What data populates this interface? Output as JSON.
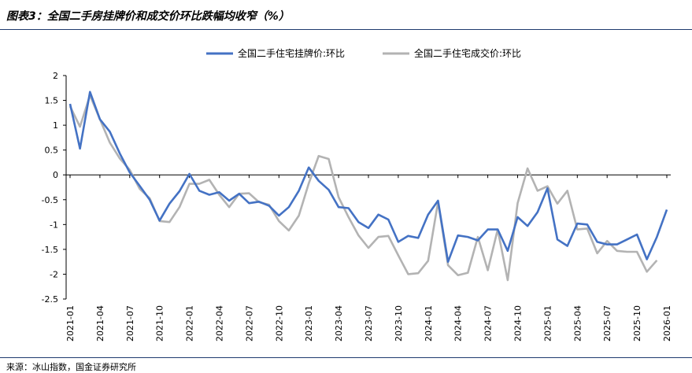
{
  "title": "图表3：全国二手房挂牌价和成交价环比跌幅均收窄（%）",
  "source": "来源：冰山指数，国金证券研究所",
  "colors": {
    "listing": "#4472c4",
    "transaction": "#b3b3b3",
    "axis": "#000000"
  },
  "chart_data": {
    "type": "line",
    "title": "图表3：全国二手房挂牌价和成交价环比跌幅均收窄（%）",
    "xlabel": "",
    "ylabel": "",
    "ylim": [
      -2.5,
      2
    ],
    "yticks": [
      2,
      1.5,
      1,
      0.5,
      0,
      -0.5,
      -1,
      -1.5,
      -2,
      -2.5
    ],
    "ytick_labels": [
      "2",
      "1.5",
      "1",
      "0.5",
      "0",
      "-0.5",
      "-1",
      "-1.5",
      "-2",
      "-2.5"
    ],
    "xlim": [
      "2021-01",
      "2026-01"
    ],
    "xticks": [
      "2021-01",
      "2021-04",
      "2021-07",
      "2021-10",
      "2022-01",
      "2022-04",
      "2022-07",
      "2022-10",
      "2023-01",
      "2023-04",
      "2023-07",
      "2023-10",
      "2024-01",
      "2024-04",
      "2024-07",
      "2024-10",
      "2025-01",
      "2025-04",
      "2025-07",
      "2025-10",
      "2026-01"
    ],
    "grid": false,
    "legend": "top-center",
    "series": [
      {
        "name": "全国二手住宅挂牌价:环比",
        "color": "#4472c4",
        "points": [
          [
            "2021-01",
            1.43
          ],
          [
            "2021-02",
            0.53
          ],
          [
            "2021-03",
            1.67
          ],
          [
            "2021-04",
            1.12
          ],
          [
            "2021-05",
            0.87
          ],
          [
            "2021-06",
            0.43
          ],
          [
            "2021-07",
            0.05
          ],
          [
            "2021-08",
            -0.22
          ],
          [
            "2021-09",
            -0.5
          ],
          [
            "2021-10",
            -0.92
          ],
          [
            "2021-11",
            -0.58
          ],
          [
            "2021-12",
            -0.33
          ],
          [
            "2022-01",
            0.02
          ],
          [
            "2022-02",
            -0.32
          ],
          [
            "2022-03",
            -0.4
          ],
          [
            "2022-04",
            -0.35
          ],
          [
            "2022-05",
            -0.52
          ],
          [
            "2022-06",
            -0.38
          ],
          [
            "2022-07",
            -0.57
          ],
          [
            "2022-08",
            -0.54
          ],
          [
            "2022-09",
            -0.62
          ],
          [
            "2022-10",
            -0.82
          ],
          [
            "2022-11",
            -0.65
          ],
          [
            "2022-12",
            -0.32
          ],
          [
            "2023-01",
            0.15
          ],
          [
            "2023-02",
            -0.12
          ],
          [
            "2023-03",
            -0.3
          ],
          [
            "2023-04",
            -0.65
          ],
          [
            "2023-05",
            -0.67
          ],
          [
            "2023-06",
            -0.95
          ],
          [
            "2023-07",
            -1.07
          ],
          [
            "2023-08",
            -0.8
          ],
          [
            "2023-09",
            -0.9
          ],
          [
            "2023-10",
            -1.35
          ],
          [
            "2023-11",
            -1.23
          ],
          [
            "2023-12",
            -1.27
          ],
          [
            "2024-01",
            -0.8
          ],
          [
            "2024-02",
            -0.52
          ],
          [
            "2024-03",
            -1.75
          ],
          [
            "2024-04",
            -1.22
          ],
          [
            "2024-05",
            -1.25
          ],
          [
            "2024-06",
            -1.32
          ],
          [
            "2024-07",
            -1.1
          ],
          [
            "2024-08",
            -1.1
          ],
          [
            "2024-09",
            -1.53
          ],
          [
            "2024-10",
            -0.85
          ],
          [
            "2024-11",
            -1.03
          ],
          [
            "2024-12",
            -0.75
          ],
          [
            "2025-01",
            -0.27
          ],
          [
            "2025-02",
            -1.3
          ],
          [
            "2025-03",
            -1.43
          ],
          [
            "2025-04",
            -0.98
          ],
          [
            "2025-05",
            -1.0
          ],
          [
            "2025-06",
            -1.35
          ],
          [
            "2025-07",
            -1.4
          ],
          [
            "2025-08",
            -1.4
          ],
          [
            "2025-09",
            -1.3
          ],
          [
            "2025-10",
            -1.2
          ],
          [
            "2025-11",
            -1.7
          ],
          [
            "2025-12",
            -1.25
          ],
          [
            "2026-01",
            -0.7
          ]
        ]
      },
      {
        "name": "全国二手住宅成交价:环比",
        "color": "#b3b3b3",
        "points": [
          [
            "2021-01",
            1.38
          ],
          [
            "2021-02",
            0.97
          ],
          [
            "2021-03",
            1.6
          ],
          [
            "2021-04",
            1.12
          ],
          [
            "2021-05",
            0.65
          ],
          [
            "2021-06",
            0.33
          ],
          [
            "2021-07",
            0.1
          ],
          [
            "2021-08",
            -0.28
          ],
          [
            "2021-09",
            -0.47
          ],
          [
            "2021-10",
            -0.93
          ],
          [
            "2021-11",
            -0.95
          ],
          [
            "2021-12",
            -0.65
          ],
          [
            "2022-01",
            -0.18
          ],
          [
            "2022-02",
            -0.18
          ],
          [
            "2022-03",
            -0.1
          ],
          [
            "2022-04",
            -0.4
          ],
          [
            "2022-05",
            -0.65
          ],
          [
            "2022-06",
            -0.38
          ],
          [
            "2022-07",
            -0.37
          ],
          [
            "2022-08",
            -0.55
          ],
          [
            "2022-09",
            -0.6
          ],
          [
            "2022-10",
            -0.93
          ],
          [
            "2022-11",
            -1.12
          ],
          [
            "2022-12",
            -0.82
          ],
          [
            "2023-01",
            -0.17
          ],
          [
            "2023-02",
            0.38
          ],
          [
            "2023-03",
            0.32
          ],
          [
            "2023-04",
            -0.45
          ],
          [
            "2023-05",
            -0.85
          ],
          [
            "2023-06",
            -1.22
          ],
          [
            "2023-07",
            -1.47
          ],
          [
            "2023-08",
            -1.25
          ],
          [
            "2023-09",
            -1.23
          ],
          [
            "2023-10",
            -1.62
          ],
          [
            "2023-11",
            -2.0
          ],
          [
            "2023-12",
            -1.98
          ],
          [
            "2024-01",
            -1.73
          ],
          [
            "2024-02",
            -0.55
          ],
          [
            "2024-03",
            -1.82
          ],
          [
            "2024-04",
            -2.02
          ],
          [
            "2024-05",
            -1.97
          ],
          [
            "2024-06",
            -1.25
          ],
          [
            "2024-07",
            -1.92
          ],
          [
            "2024-08",
            -1.1
          ],
          [
            "2024-09",
            -2.12
          ],
          [
            "2024-10",
            -0.57
          ],
          [
            "2024-11",
            0.13
          ],
          [
            "2024-12",
            -0.32
          ],
          [
            "2025-01",
            -0.23
          ],
          [
            "2025-02",
            -0.58
          ],
          [
            "2025-03",
            -0.32
          ],
          [
            "2025-04",
            -1.1
          ],
          [
            "2025-05",
            -1.08
          ],
          [
            "2025-06",
            -1.58
          ],
          [
            "2025-07",
            -1.33
          ],
          [
            "2025-08",
            -1.53
          ],
          [
            "2025-09",
            -1.55
          ],
          [
            "2025-10",
            -1.55
          ],
          [
            "2025-11",
            -1.95
          ],
          [
            "2025-12",
            -1.72
          ]
        ]
      }
    ]
  }
}
